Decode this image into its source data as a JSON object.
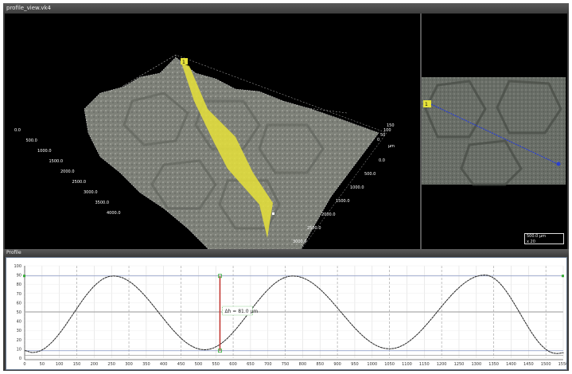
{
  "window": {
    "title": "profile_view.vk4"
  },
  "profile_panel": {
    "title": "Profile"
  },
  "view3d": {
    "left_axis_labels": [
      "0.0",
      "500.0",
      "1000.0",
      "1500.0",
      "2000.0",
      "2500.0",
      "3000.0",
      "3500.0",
      "4000.0"
    ],
    "right_axis_labels": [
      "0.0",
      "500.0",
      "1000.0",
      "1500.0",
      "2000.0",
      "2500.0",
      "3000.0"
    ],
    "z_axis_labels": [
      "0",
      "50",
      "100",
      "150"
    ],
    "axis_unit": "μm",
    "marker_label": "1",
    "ribbon_color": "#e6e23a"
  },
  "view2d": {
    "marker_label": "1",
    "line_color": "#2a3fd0",
    "scale_bar": {
      "length": "500.0",
      "unit": "μm",
      "magnification": "x 20"
    }
  },
  "chart_data": {
    "type": "line",
    "title": "",
    "xlabel": "",
    "ylabel": "",
    "xlim": [
      0,
      1550
    ],
    "ylim": [
      0,
      100
    ],
    "x_ticks": [
      0,
      50,
      100,
      150,
      200,
      250,
      300,
      350,
      400,
      450,
      500,
      550,
      600,
      650,
      700,
      750,
      800,
      850,
      900,
      950,
      1000,
      1050,
      1100,
      1150,
      1200,
      1250,
      1300,
      1350,
      1400,
      1450,
      1500,
      1550
    ],
    "y_ticks": [
      0,
      10,
      20,
      30,
      40,
      50,
      60,
      70,
      80,
      90,
      100
    ],
    "grid": true,
    "series": [
      {
        "extrema": [
          [
            0,
            8
          ],
          [
            23,
            6
          ],
          [
            255,
            89
          ],
          [
            518,
            9
          ],
          [
            772,
            89
          ],
          [
            1050,
            10
          ],
          [
            1324,
            90
          ],
          [
            1530,
            5
          ],
          [
            1560,
            6
          ]
        ],
        "color": "#222222"
      }
    ],
    "reference_lines": {
      "upper": 89,
      "lower": 8,
      "middle": 50,
      "base": 3
    },
    "cursor": {
      "x": 562,
      "y_top": 89,
      "y_bottom": 8,
      "color": "#c0302a"
    },
    "annotation": "Δh = 81.0 μm"
  }
}
